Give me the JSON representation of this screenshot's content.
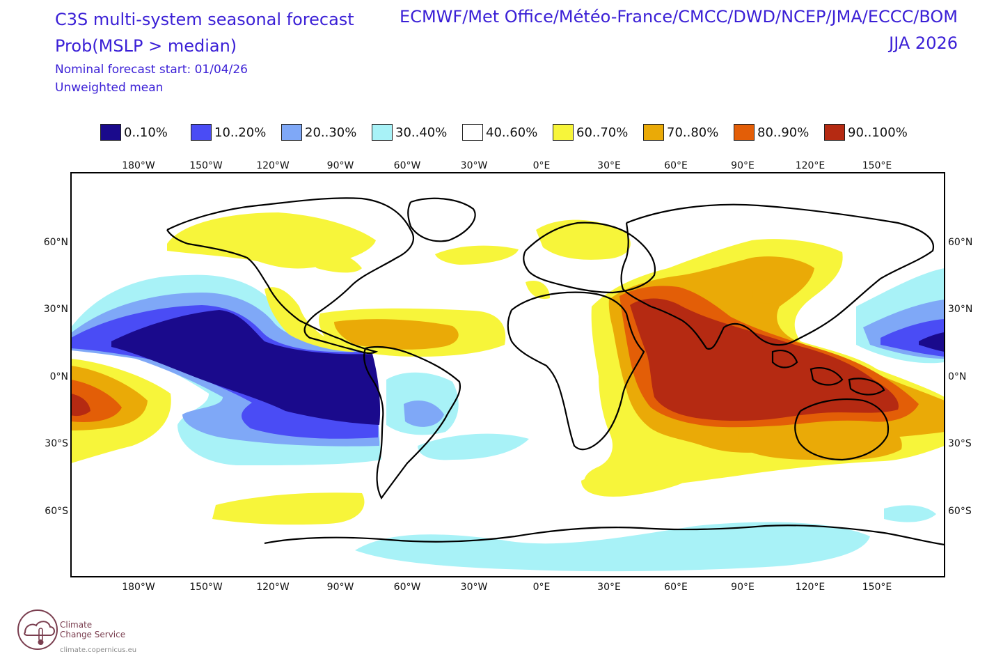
{
  "header": {
    "title_line1": "C3S multi-system seasonal forecast",
    "title_line2": "Prob(MSLP > median)",
    "subtitle_start": "Nominal forecast start: 01/04/26",
    "subtitle_mean": "Unweighted mean",
    "centres": "ECMWF/Met Office/Météo-France/CMCC/DWD/NCEP/JMA/ECCC/BOM",
    "period": "JJA 2026"
  },
  "legend": [
    {
      "label": "0..10%",
      "color": "#1a0a8c"
    },
    {
      "label": "10..20%",
      "color": "#4a4cf5"
    },
    {
      "label": "20..30%",
      "color": "#7fa8f7"
    },
    {
      "label": "30..40%",
      "color": "#a8f2f7"
    },
    {
      "label": "40..60%",
      "color": "#ffffff"
    },
    {
      "label": "60..70%",
      "color": "#f7f53a"
    },
    {
      "label": "70..80%",
      "color": "#eaaa07"
    },
    {
      "label": "80..90%",
      "color": "#e35e07"
    },
    {
      "label": "90..100%",
      "color": "#b52a12"
    }
  ],
  "axes": {
    "lon_labels": [
      "180°W",
      "150°W",
      "120°W",
      "90°W",
      "60°W",
      "30°W",
      "0°E",
      "30°E",
      "60°E",
      "90°E",
      "120°E",
      "150°E"
    ],
    "lat_labels_left": [
      "60°N",
      "30°N",
      "0°N",
      "30°S",
      "60°S"
    ],
    "lat_labels_right": [
      "60°N",
      "30°N",
      "0°N",
      "30°S",
      "60°S"
    ]
  },
  "logo": {
    "line1": "Climate",
    "line2": "Change Service",
    "url": "climate.copernicus.eu"
  }
}
